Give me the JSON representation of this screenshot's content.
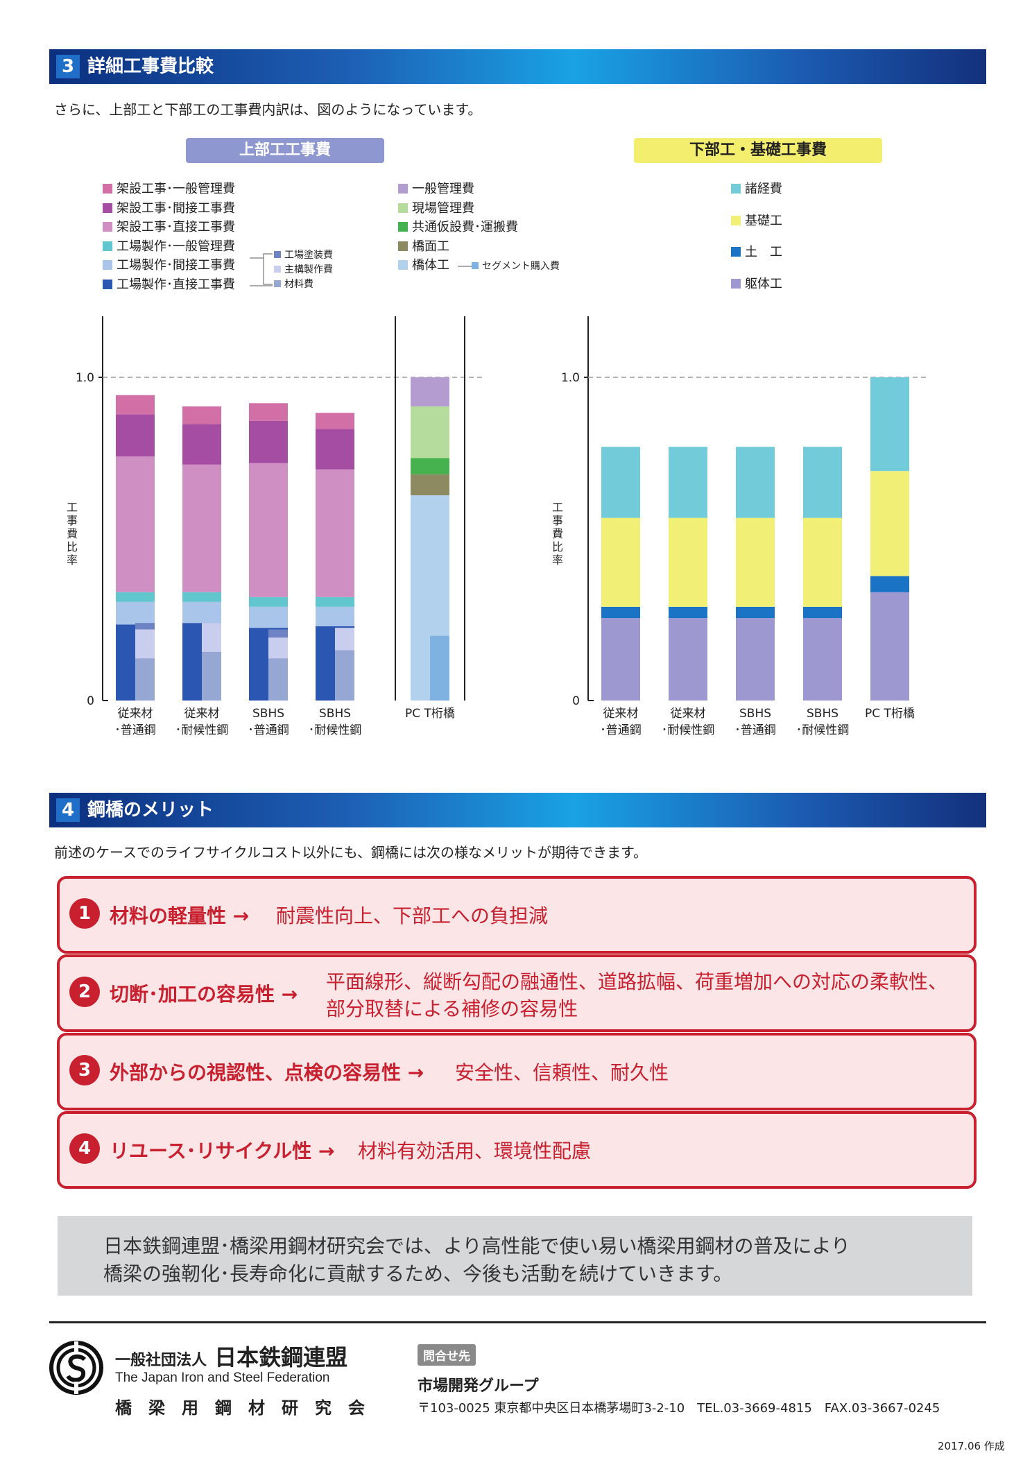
{
  "section3": {
    "number": "3",
    "title": "詳細工事費比較",
    "intro": "さらに、上部工と下部工の工事費内訳は、図のようになっています。"
  },
  "upper_pill": "上部工工事費",
  "lower_pill": "下部工・基礎工事費",
  "legend_upper": [
    {
      "label": "架設工事･一般管理費",
      "color": "#d16fa6"
    },
    {
      "label": "架設工事･間接工事費",
      "color": "#a44da3"
    },
    {
      "label": "架設工事･直接工事費",
      "color": "#cf8fc3"
    },
    {
      "label": "工場製作･一般管理費",
      "color": "#62c6cf"
    },
    {
      "label": "工場製作･間接工事費",
      "color": "#a9c6ea"
    },
    {
      "label": "工場製作･直接工事費",
      "color": "#2b57b3"
    }
  ],
  "legend_sub": [
    {
      "label": "工場塗装費",
      "color": "#6e83c4"
    },
    {
      "label": "主構製作費",
      "color": "#c9cdee"
    },
    {
      "label": "材料費",
      "color": "#97a7d4"
    }
  ],
  "legend_pc": [
    {
      "label": "一般管理費",
      "color": "#b49bd0"
    },
    {
      "label": "現場管理費",
      "color": "#b5dc9c"
    },
    {
      "label": "共通仮設費･運搬費",
      "color": "#46b14f"
    },
    {
      "label": "橋面工",
      "color": "#8d8a62"
    },
    {
      "label": "橋体工",
      "color": "#b1d1ed"
    }
  ],
  "legend_pc_sub": {
    "label": "セグメント購入費",
    "color": "#7fb1e1"
  },
  "legend_lower": [
    {
      "label": "諸経費",
      "color": "#72cbd8"
    },
    {
      "label": "基礎工",
      "color": "#f2ef77"
    },
    {
      "label": "土　工",
      "color": "#1b73c6"
    },
    {
      "label": "躯体工",
      "color": "#9d98cf"
    }
  ],
  "chart_data": [
    {
      "type": "bar",
      "title": "上部工工事費",
      "ylabel": "工事費比率",
      "yticks": [
        "0",
        "1.0"
      ],
      "ylim": [
        0,
        1.2
      ],
      "categories": [
        [
          "従来材",
          "･普通鋼"
        ],
        [
          "従来材",
          "･耐候性鋼"
        ],
        [
          "SBHS",
          "･普通鋼"
        ],
        [
          "SBHS",
          "･耐候性鋼"
        ]
      ],
      "series": [
        {
          "name": "工場製作･直接工事費",
          "color": "#2b57b3",
          "values": [
            0.235,
            0.24,
            0.225,
            0.23
          ]
        },
        {
          "name": "工場製作･間接工事費",
          "color": "#a9c6ea",
          "values": [
            0.07,
            0.065,
            0.065,
            0.06
          ]
        },
        {
          "name": "工場製作･一般管理費",
          "color": "#62c6cf",
          "values": [
            0.03,
            0.03,
            0.03,
            0.03
          ]
        },
        {
          "name": "架設工事･直接工事費",
          "color": "#cf8fc3",
          "values": [
            0.42,
            0.395,
            0.415,
            0.395
          ]
        },
        {
          "name": "架設工事･間接工事費",
          "color": "#a44da3",
          "values": [
            0.13,
            0.125,
            0.13,
            0.125
          ]
        },
        {
          "name": "架設工事･一般管理費",
          "color": "#d16fa6",
          "values": [
            0.06,
            0.055,
            0.055,
            0.05
          ]
        }
      ],
      "sub_breakdown": {
        "labels": [
          "材料費",
          "主構製作費",
          "工場塗装費"
        ],
        "colors": [
          "#97a7d4",
          "#c9cdee",
          "#6e83c4"
        ],
        "values": [
          [
            0.13,
            0.09,
            0.02
          ],
          [
            0.15,
            0.09,
            0.0
          ],
          [
            0.13,
            0.065,
            0.025
          ],
          [
            0.155,
            0.07,
            0.0
          ]
        ]
      },
      "pc_bar": {
        "category": "PC T桁橋",
        "series": [
          {
            "name": "橋体工",
            "color": "#b1d1ed",
            "value": 0.635
          },
          {
            "name": "橋面工",
            "color": "#8d8a62",
            "value": 0.065
          },
          {
            "name": "共通仮設費･運搬費",
            "color": "#46b14f",
            "value": 0.05
          },
          {
            "name": "現場管理費",
            "color": "#b5dc9c",
            "value": 0.16
          },
          {
            "name": "一般管理費",
            "color": "#b49bd0",
            "value": 0.09
          }
        ],
        "segment": {
          "name": "セグメント購入費",
          "color": "#7fb1e1",
          "value": 0.2
        }
      }
    },
    {
      "type": "bar",
      "title": "下部工・基礎工事費",
      "ylabel": "工事費比率",
      "yticks": [
        "0",
        "1.0"
      ],
      "ylim": [
        0,
        1.2
      ],
      "categories": [
        [
          "従来材",
          "･普通鋼"
        ],
        [
          "従来材",
          "･耐候性鋼"
        ],
        [
          "SBHS",
          "･普通鋼"
        ],
        [
          "SBHS",
          "･耐候性鋼"
        ],
        [
          "PC T桁橋",
          ""
        ]
      ],
      "series": [
        {
          "name": "躯体工",
          "color": "#9d98cf",
          "values": [
            0.255,
            0.255,
            0.255,
            0.255,
            0.335
          ]
        },
        {
          "name": "土　工",
          "color": "#1b73c6",
          "values": [
            0.035,
            0.035,
            0.035,
            0.035,
            0.05
          ]
        },
        {
          "name": "基礎工",
          "color": "#f2ef77",
          "values": [
            0.275,
            0.275,
            0.275,
            0.275,
            0.325
          ]
        },
        {
          "name": "諸経費",
          "color": "#72cbd8",
          "values": [
            0.22,
            0.22,
            0.22,
            0.22,
            0.29
          ]
        }
      ]
    }
  ],
  "section4": {
    "number": "4",
    "title": "鋼橋のメリット",
    "intro": "前述のケースでのライフサイクルコスト以外にも、鋼橋には次の様なメリットが期待できます。"
  },
  "merits": [
    {
      "num": "1",
      "title": "材料の軽量性",
      "arrow": "→",
      "desc1": "耐震性向上、下部工への負担減",
      "desc2": ""
    },
    {
      "num": "2",
      "title": "切断･加工の容易性",
      "arrow": "→",
      "desc1": "平面線形、縦断勾配の融通性、道路拡幅、荷重増加への対応の柔軟性、",
      "desc2": "部分取替による補修の容易性"
    },
    {
      "num": "3",
      "title": "外部からの視認性、点検の容易性",
      "arrow": "→",
      "desc1": "安全性、信頼性、耐久性",
      "desc2": ""
    },
    {
      "num": "4",
      "title": "リユース･リサイクル性",
      "arrow": "→",
      "desc1": "材料有効活用、環境性配慮",
      "desc2": ""
    }
  ],
  "closing": {
    "line1": "日本鉄鋼連盟･橋梁用鋼材研究会では、より高性能で使い易い橋梁用鋼材の普及により",
    "line2": "橋梁の強靭化･長寿命化に貢献するため、今後も活動を続けていきます。"
  },
  "footer": {
    "org_prefix": "一般社団法人",
    "org_name": "日本鉄鋼連盟",
    "org_en": "The Japan Iron and Steel Federation",
    "org_sub": "橋　梁　用　鋼　材　研　究　会",
    "contact_badge": "問合せ先",
    "group": "市場開発グループ",
    "address": "〒103-0025 東京都中央区日本橋茅場町3-2-10　TEL.03-3669-4815　FAX.03-3667-0245",
    "date": "2017.06 作成"
  }
}
